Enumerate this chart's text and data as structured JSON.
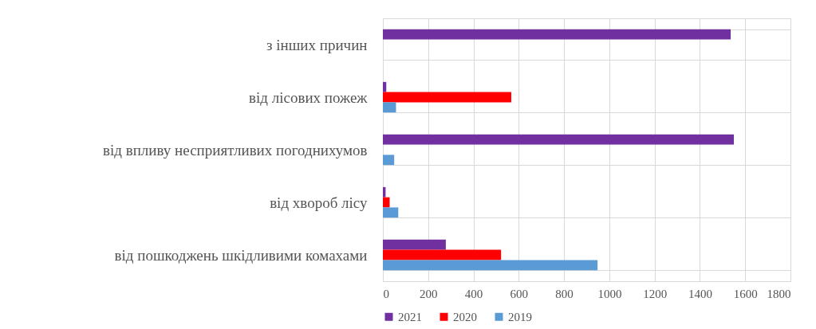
{
  "chart_data": {
    "type": "bar",
    "orientation": "horizontal",
    "categories": [
      "з інших  причин",
      "від лісових пожеж",
      "від впливу несприятливих погоднихумов",
      "від хвороб лісу",
      "від пошкоджень шкідливими комахами"
    ],
    "series": [
      {
        "name": "2021",
        "color": "#7030a0",
        "values": [
          1536,
          15,
          1550,
          12,
          278
        ]
      },
      {
        "name": "2020",
        "color": "#ff0000",
        "values": [
          null,
          567,
          null,
          30,
          522
        ]
      },
      {
        "name": "2019",
        "color": "#5b9bd5",
        "values": [
          null,
          58,
          50,
          68,
          948
        ]
      }
    ],
    "xlim": [
      0,
      1800
    ],
    "xticks": [
      0,
      200,
      400,
      600,
      800,
      1000,
      1200,
      1400,
      1600,
      1800
    ],
    "grid": true,
    "legend": "bottom"
  }
}
